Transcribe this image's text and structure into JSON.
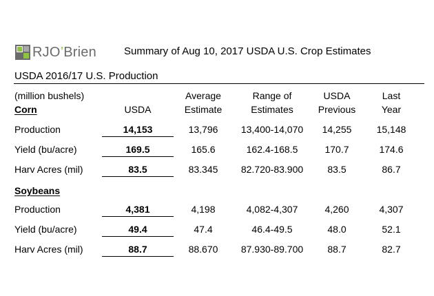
{
  "logo": {
    "brand_main": "RJO",
    "brand_apostrophe": "’",
    "brand_rest": "Brien"
  },
  "title": "Summary of Aug 10, 2017 USDA U.S. Crop Estimates",
  "section": "USDA 2016/17 U.S. Production",
  "units": "(million bushels)",
  "headers": {
    "usda": "USDA",
    "avg_1": "Average",
    "avg_2": "Estimate",
    "range_1": "Range of",
    "range_2": "Estimates",
    "prev_1": "USDA",
    "prev_2": "Previous",
    "last_1": "Last",
    "last_2": "Year"
  },
  "corn": {
    "label": "Corn",
    "rows": [
      {
        "label": "Production",
        "usda": "14,153",
        "avg": "13,796",
        "range": "13,400-14,070",
        "prev": "14,255",
        "last": "15,148"
      },
      {
        "label": "Yield (bu/acre)",
        "usda": "169.5",
        "avg": "165.6",
        "range": "162.4-168.5",
        "prev": "170.7",
        "last": "174.6"
      },
      {
        "label": "Harv Acres (mil)",
        "usda": "83.5",
        "avg": "83.345",
        "range": "82.720-83.900",
        "prev": "83.5",
        "last": "86.7"
      }
    ]
  },
  "soybeans": {
    "label": "Soybeans",
    "rows": [
      {
        "label": "Production",
        "usda": "4,381",
        "avg": "4,198",
        "range": "4,082-4,307",
        "prev": "4,260",
        "last": "4,307"
      },
      {
        "label": "Yield (bu/acre)",
        "usda": "49.4",
        "avg": "47.4",
        "range": "46.4-49.5",
        "prev": "48.0",
        "last": "52.1"
      },
      {
        "label": "Harv Acres (mil)",
        "usda": "88.7",
        "avg": "88.670",
        "range": "87.930-89.700",
        "prev": "88.7",
        "last": "82.7"
      }
    ]
  },
  "colors": {
    "logo_green": "#8cc63f",
    "logo_gray": "#6b6b6b"
  }
}
